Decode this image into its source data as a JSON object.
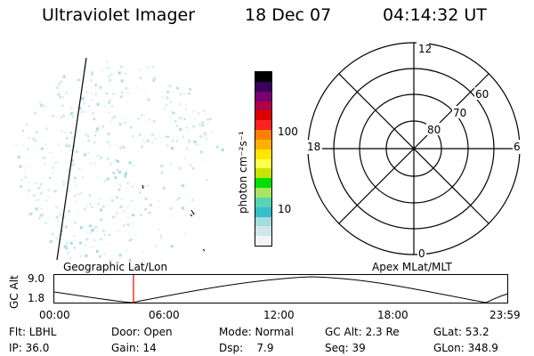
{
  "header": {
    "instrument": "Ultraviolet Imager",
    "date": "18 Dec 07",
    "time": "04:14:32 UT"
  },
  "colorbar": {
    "unit_label": "photon cm⁻²s⁻¹",
    "ticks": [
      "100",
      "10"
    ],
    "colors": [
      "#f0f6f8",
      "#cfe6ea",
      "#a5dcdf",
      "#35c0c8",
      "#56d5b3",
      "#a8e463",
      "#00e000",
      "#c8e400",
      "#ffff4d",
      "#ffe600",
      "#ffb000",
      "#ff8000",
      "#ff2020",
      "#dd0000",
      "#b0004a",
      "#7a0070",
      "#3a0060",
      "#000000"
    ]
  },
  "polar": {
    "top": "12",
    "left": "18",
    "right": "6",
    "bottom": "0",
    "rings": [
      "80",
      "70",
      "60"
    ]
  },
  "timeline": {
    "left_title": "Geographic Lat/Lon",
    "right_title": "Apex MLat/MLT",
    "ylabel": "GC Alt",
    "yticks": [
      "9.0",
      "1.8"
    ],
    "xticks": [
      "00:00",
      "06:00",
      "12:00",
      "18:00",
      "23:59"
    ],
    "marker_color": "#ff0000"
  },
  "info": {
    "row1": [
      "Flt: LBHL",
      "Door: Open",
      "Mode: Normal",
      "GC Alt: 2.3 Re",
      "GLat: 53.2"
    ],
    "row2": [
      "IP: 36.0",
      "Gain: 14",
      "Dsp:    7.9",
      "Seq: 39",
      "GLon: 348.9"
    ]
  }
}
